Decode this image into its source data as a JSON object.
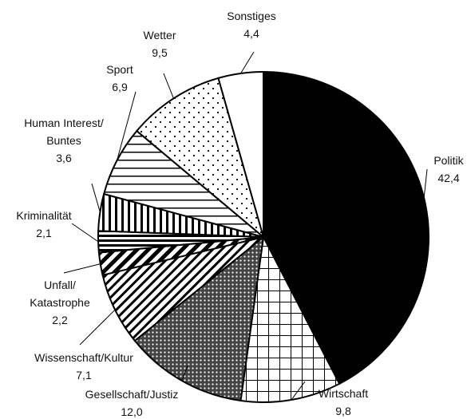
{
  "chart_data": {
    "type": "pie",
    "categories": [
      "Politik",
      "Wirtschaft",
      "Gesellschaft/Justiz",
      "Wissenschaft/Kultur",
      "Unfall/\nKatastrophe",
      "Kriminalität",
      "Human Interest/\nBuntes",
      "Sport",
      "Wetter",
      "Sonstiges"
    ],
    "values": [
      42.4,
      9.8,
      12.0,
      7.1,
      2.2,
      2.1,
      3.6,
      6.9,
      9.5,
      4.4
    ],
    "value_labels": [
      "42,4",
      "9,8",
      "12,0",
      "7,1",
      "2,2",
      "2,1",
      "3,6",
      "6,9",
      "9,5",
      "4,4"
    ]
  }
}
